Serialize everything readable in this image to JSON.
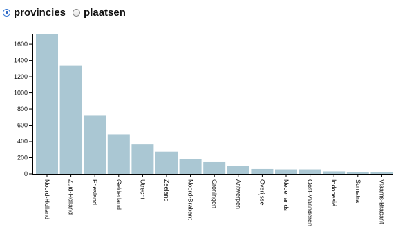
{
  "controls": {
    "options": [
      {
        "label": "provincies",
        "checked": true
      },
      {
        "label": "plaatsen",
        "checked": false
      }
    ]
  },
  "chart_data": {
    "type": "bar",
    "categories": [
      "Noord-Holland",
      "Zuid-Holland",
      "Friesland",
      "Gelderland",
      "Utrecht",
      "Zeeland",
      "Noord-Brabant",
      "Groningen",
      "Antwerpen",
      "Overijssel",
      "Nederlands",
      "Oost-Vlaanderen",
      "Indonesië",
      "Sumatra",
      "Vlaams-Brabant"
    ],
    "values": [
      1720,
      1340,
      720,
      490,
      365,
      275,
      185,
      145,
      100,
      60,
      55,
      55,
      30,
      25,
      25
    ],
    "yticks": [
      0,
      200,
      400,
      600,
      800,
      1000,
      1200,
      1400,
      1600
    ],
    "ylim": [
      0,
      1720
    ],
    "bar_color": "#aac7d3",
    "title": "",
    "xlabel": "",
    "ylabel": ""
  }
}
